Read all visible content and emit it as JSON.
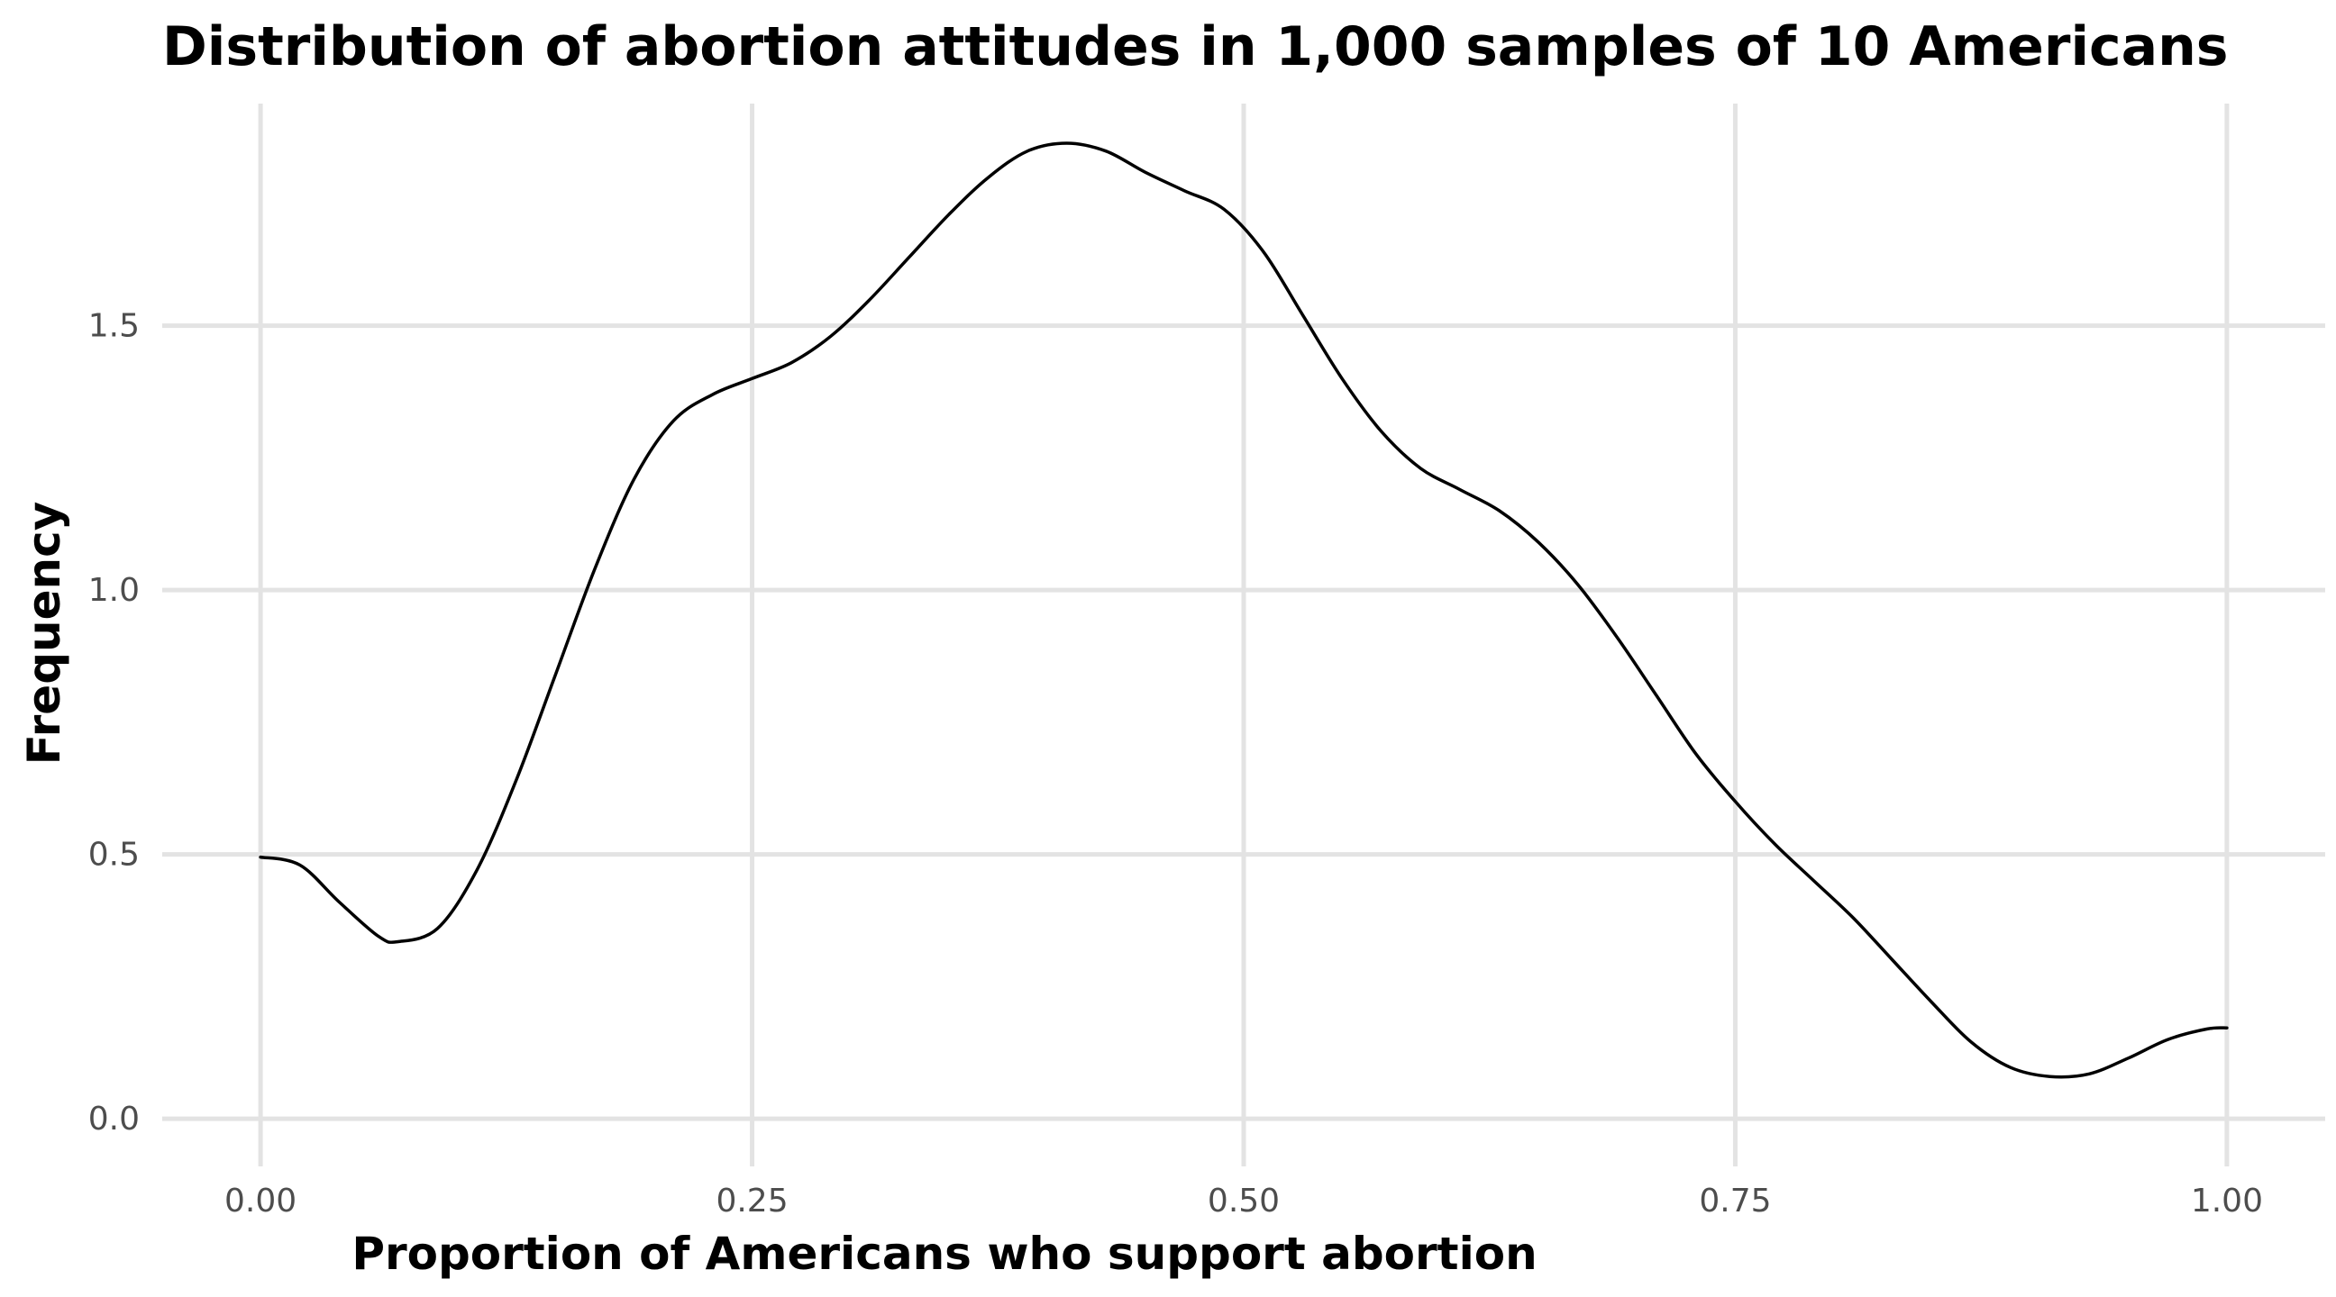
{
  "chart_data": {
    "type": "line",
    "title": "Distribution of abortion attitudes in 1,000 samples of 10 Americans",
    "xlabel": "Proportion of Americans who support abortion",
    "ylabel": "Frequency",
    "xlim": [
      -0.05,
      1.05
    ],
    "ylim": [
      -0.09,
      1.92
    ],
    "grid": true,
    "x_ticks": [
      0.0,
      0.25,
      0.5,
      0.75,
      1.0
    ],
    "x_tick_labels": [
      "0.00",
      "0.25",
      "0.50",
      "0.75",
      "1.00"
    ],
    "y_ticks": [
      0.0,
      0.5,
      1.0,
      1.5
    ],
    "y_tick_labels": [
      "0.0",
      "0.5",
      "1.0",
      "1.5"
    ],
    "series": [
      {
        "color": "#000000",
        "points": [
          [
            0.0,
            0.495
          ],
          [
            0.02,
            0.48
          ],
          [
            0.04,
            0.41
          ],
          [
            0.06,
            0.345
          ],
          [
            0.07,
            0.335
          ],
          [
            0.09,
            0.36
          ],
          [
            0.11,
            0.47
          ],
          [
            0.13,
            0.64
          ],
          [
            0.15,
            0.84
          ],
          [
            0.17,
            1.04
          ],
          [
            0.19,
            1.21
          ],
          [
            0.21,
            1.32
          ],
          [
            0.23,
            1.37
          ],
          [
            0.25,
            1.4
          ],
          [
            0.27,
            1.43
          ],
          [
            0.29,
            1.48
          ],
          [
            0.31,
            1.55
          ],
          [
            0.33,
            1.63
          ],
          [
            0.35,
            1.71
          ],
          [
            0.37,
            1.78
          ],
          [
            0.39,
            1.83
          ],
          [
            0.41,
            1.845
          ],
          [
            0.43,
            1.83
          ],
          [
            0.45,
            1.79
          ],
          [
            0.47,
            1.755
          ],
          [
            0.49,
            1.72
          ],
          [
            0.51,
            1.64
          ],
          [
            0.53,
            1.52
          ],
          [
            0.55,
            1.4
          ],
          [
            0.57,
            1.3
          ],
          [
            0.59,
            1.23
          ],
          [
            0.61,
            1.19
          ],
          [
            0.63,
            1.15
          ],
          [
            0.65,
            1.09
          ],
          [
            0.67,
            1.01
          ],
          [
            0.69,
            0.91
          ],
          [
            0.71,
            0.8
          ],
          [
            0.73,
            0.69
          ],
          [
            0.75,
            0.6
          ],
          [
            0.77,
            0.52
          ],
          [
            0.79,
            0.45
          ],
          [
            0.81,
            0.38
          ],
          [
            0.83,
            0.3
          ],
          [
            0.85,
            0.22
          ],
          [
            0.87,
            0.145
          ],
          [
            0.89,
            0.097
          ],
          [
            0.91,
            0.08
          ],
          [
            0.93,
            0.085
          ],
          [
            0.95,
            0.115
          ],
          [
            0.97,
            0.15
          ],
          [
            0.99,
            0.17
          ],
          [
            1.0,
            0.172
          ]
        ]
      }
    ]
  }
}
